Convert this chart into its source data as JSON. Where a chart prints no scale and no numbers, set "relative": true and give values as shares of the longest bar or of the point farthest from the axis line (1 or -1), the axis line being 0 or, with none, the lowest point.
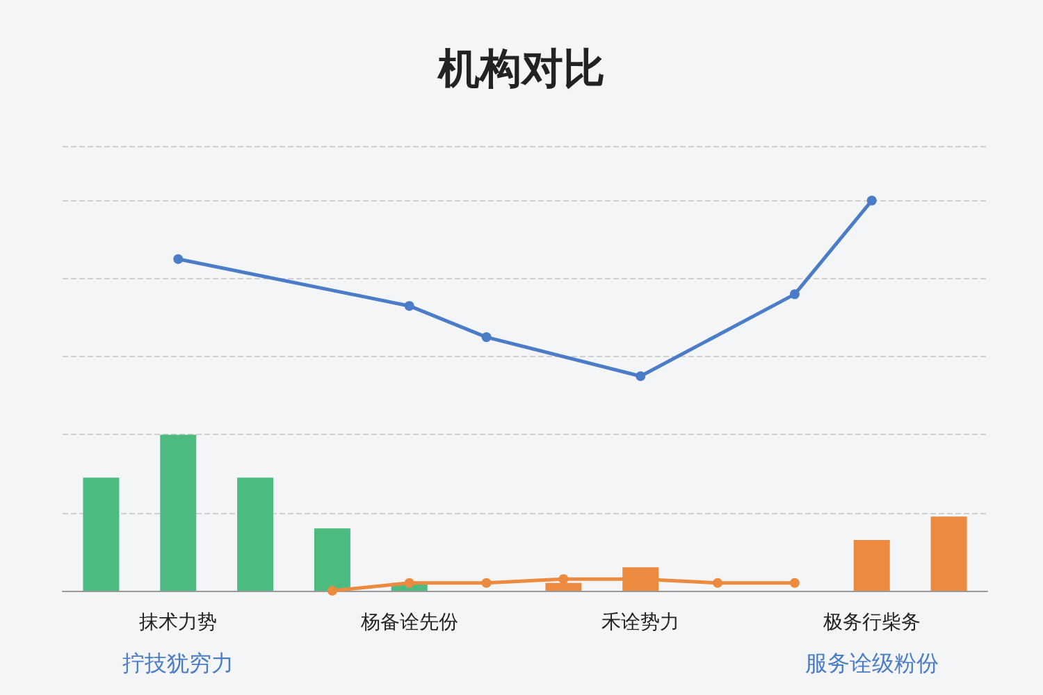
{
  "chart_data": {
    "type": "bar",
    "title": "机构对比",
    "relative": true,
    "categories": [
      null,
      "抹术力势",
      null,
      null,
      "杨备诠先份",
      null,
      null,
      "禾诠势力",
      null,
      null,
      "极务行柴务",
      null
    ],
    "series": [
      {
        "colors": [
          "#4dbb7f",
          "#4dbb7f",
          "#4dbb7f",
          "#4dbb7f",
          "#4dbb7f",
          "#ec8a3f",
          "#ec8a3f",
          "#ec8a3f",
          "#ec8a3f",
          "#ec8a3f",
          "#ec8a3f",
          "#ec8a3f"
        ],
        "values": [
          0.29,
          0.4,
          0.29,
          0.16,
          0.02,
          null,
          0.02,
          0.06,
          null,
          null,
          0.13,
          0.19
        ]
      },
      {
        "type": "line",
        "color": "#4a7cc7",
        "values": [
          null,
          0.85,
          null,
          null,
          0.73,
          0.65,
          null,
          0.55,
          null,
          0.76,
          1,
          null
        ]
      },
      {
        "type": "line",
        "color": "#ec8a3f",
        "values": [
          null,
          null,
          null,
          0,
          0.02,
          0.02,
          0.03,
          0.03,
          0.02,
          0.02,
          null,
          null
        ]
      }
    ],
    "annotations": [
      "拧技犹穷力",
      "服务诠级粉份"
    ],
    "grid": "y",
    "marker": "circle",
    "line_style": "solid"
  }
}
